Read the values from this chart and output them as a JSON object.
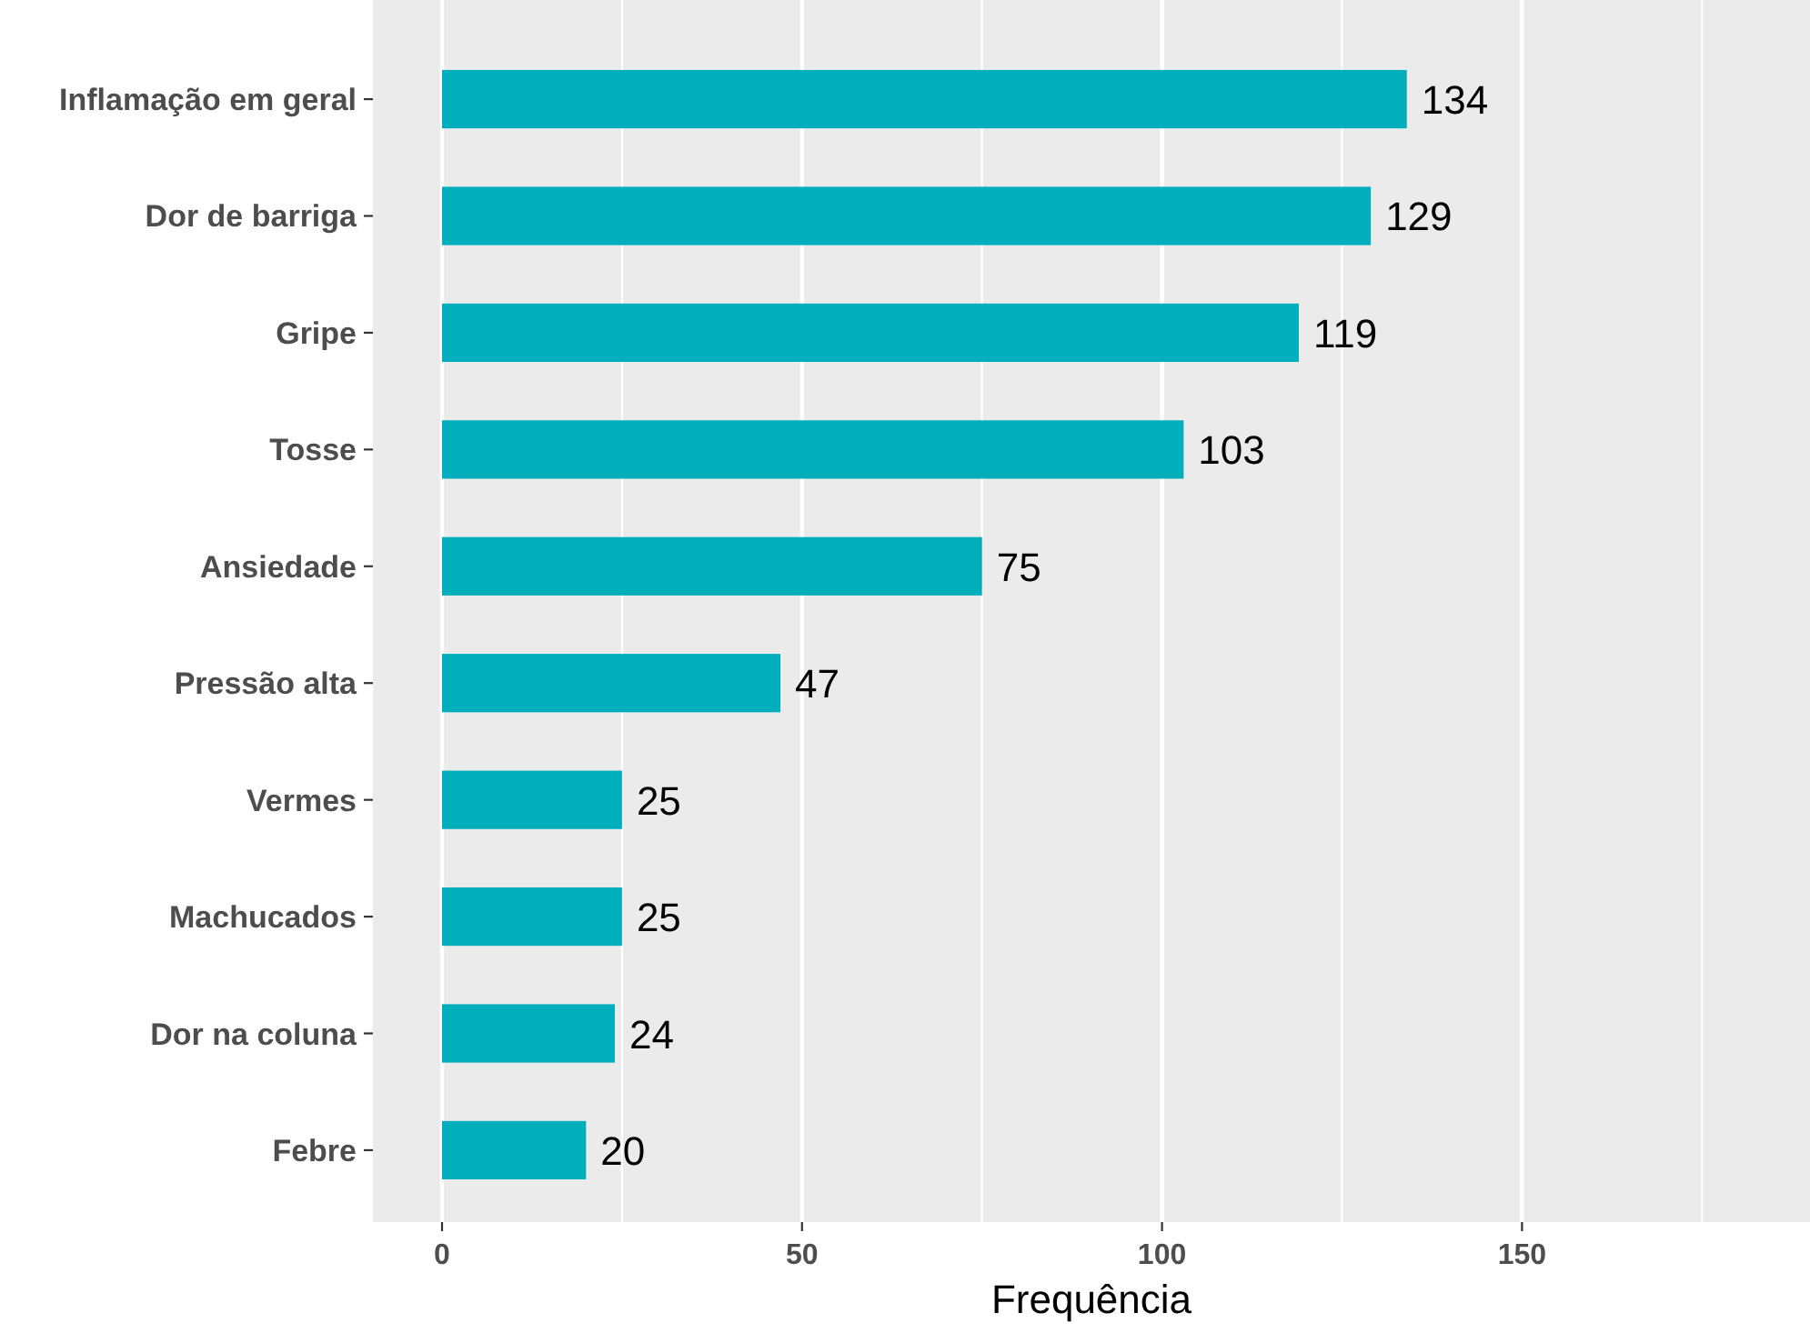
{
  "chart_data": {
    "type": "bar",
    "orientation": "horizontal",
    "xlabel": "Frequência",
    "categories": [
      "Inflamação em geral",
      "Dor de barriga",
      "Gripe",
      "Tosse",
      "Ansiedade",
      "Pressão alta",
      "Vermes",
      "Machucados",
      "Dor na coluna",
      "Febre"
    ],
    "values": [
      134,
      129,
      119,
      103,
      75,
      47,
      25,
      25,
      24,
      20
    ],
    "color": "#00afbb",
    "xlim": [
      -9.6,
      190
    ],
    "xticks": [
      0,
      50,
      100,
      150
    ],
    "grid": "x",
    "data_labels": true
  }
}
